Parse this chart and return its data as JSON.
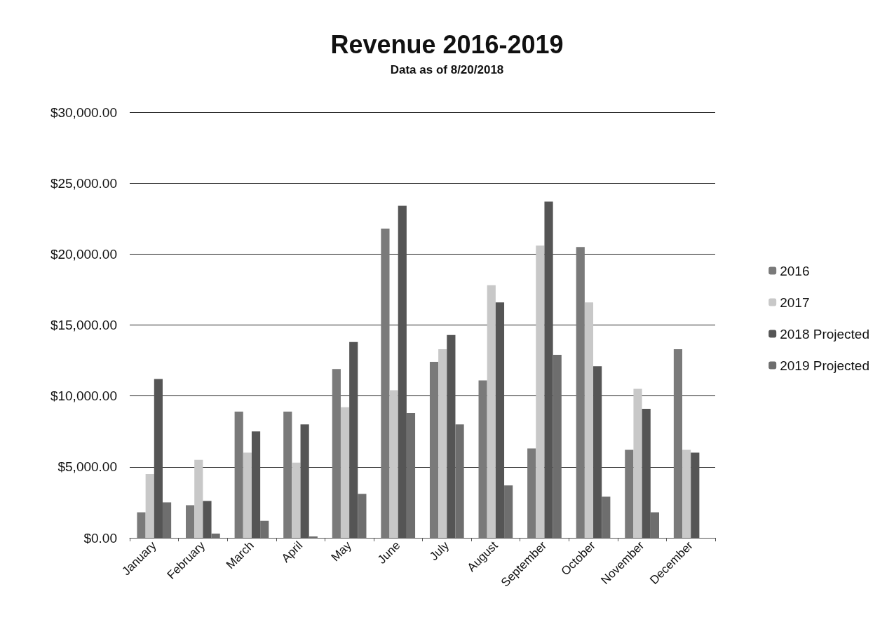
{
  "chart_data": {
    "type": "bar",
    "title": "Revenue 2016-2019",
    "subtitle": "Data as of 8/20/2018",
    "categories": [
      "January",
      "February",
      "March",
      "April",
      "May",
      "June",
      "July",
      "August",
      "September",
      "October",
      "November",
      "December"
    ],
    "series": [
      {
        "name": "2016",
        "color": "#7a7a7a",
        "values": [
          1800,
          2300,
          8900,
          8900,
          11900,
          21800,
          12400,
          11100,
          6300,
          20500,
          6200,
          13300
        ]
      },
      {
        "name": "2017",
        "color": "#c8c8c8",
        "values": [
          4500,
          5500,
          6000,
          5300,
          9200,
          10400,
          13300,
          17800,
          20600,
          16600,
          10500,
          6200
        ]
      },
      {
        "name": "2018 Projected",
        "color": "#555555",
        "values": [
          11200,
          2600,
          7500,
          8000,
          13800,
          23400,
          14300,
          16600,
          23700,
          12100,
          9100,
          6000
        ]
      },
      {
        "name": "2019 Projected",
        "color": "#6e6e6e",
        "values": [
          2500,
          300,
          1200,
          100,
          3100,
          8800,
          8000,
          3700,
          12900,
          2900,
          1800,
          null
        ]
      }
    ],
    "ylim": [
      0,
      30000
    ],
    "yticks": [
      {
        "value": 0,
        "label": "$0.00"
      },
      {
        "value": 5000,
        "label": "$5,000.00"
      },
      {
        "value": 10000,
        "label": "$10,000.00"
      },
      {
        "value": 15000,
        "label": "$15,000.00"
      },
      {
        "value": 20000,
        "label": "$20,000.00"
      },
      {
        "value": 25000,
        "label": "$25,000.00"
      },
      {
        "value": 30000,
        "label": "$30,000.00"
      }
    ],
    "grid": "y",
    "legend": "right"
  }
}
